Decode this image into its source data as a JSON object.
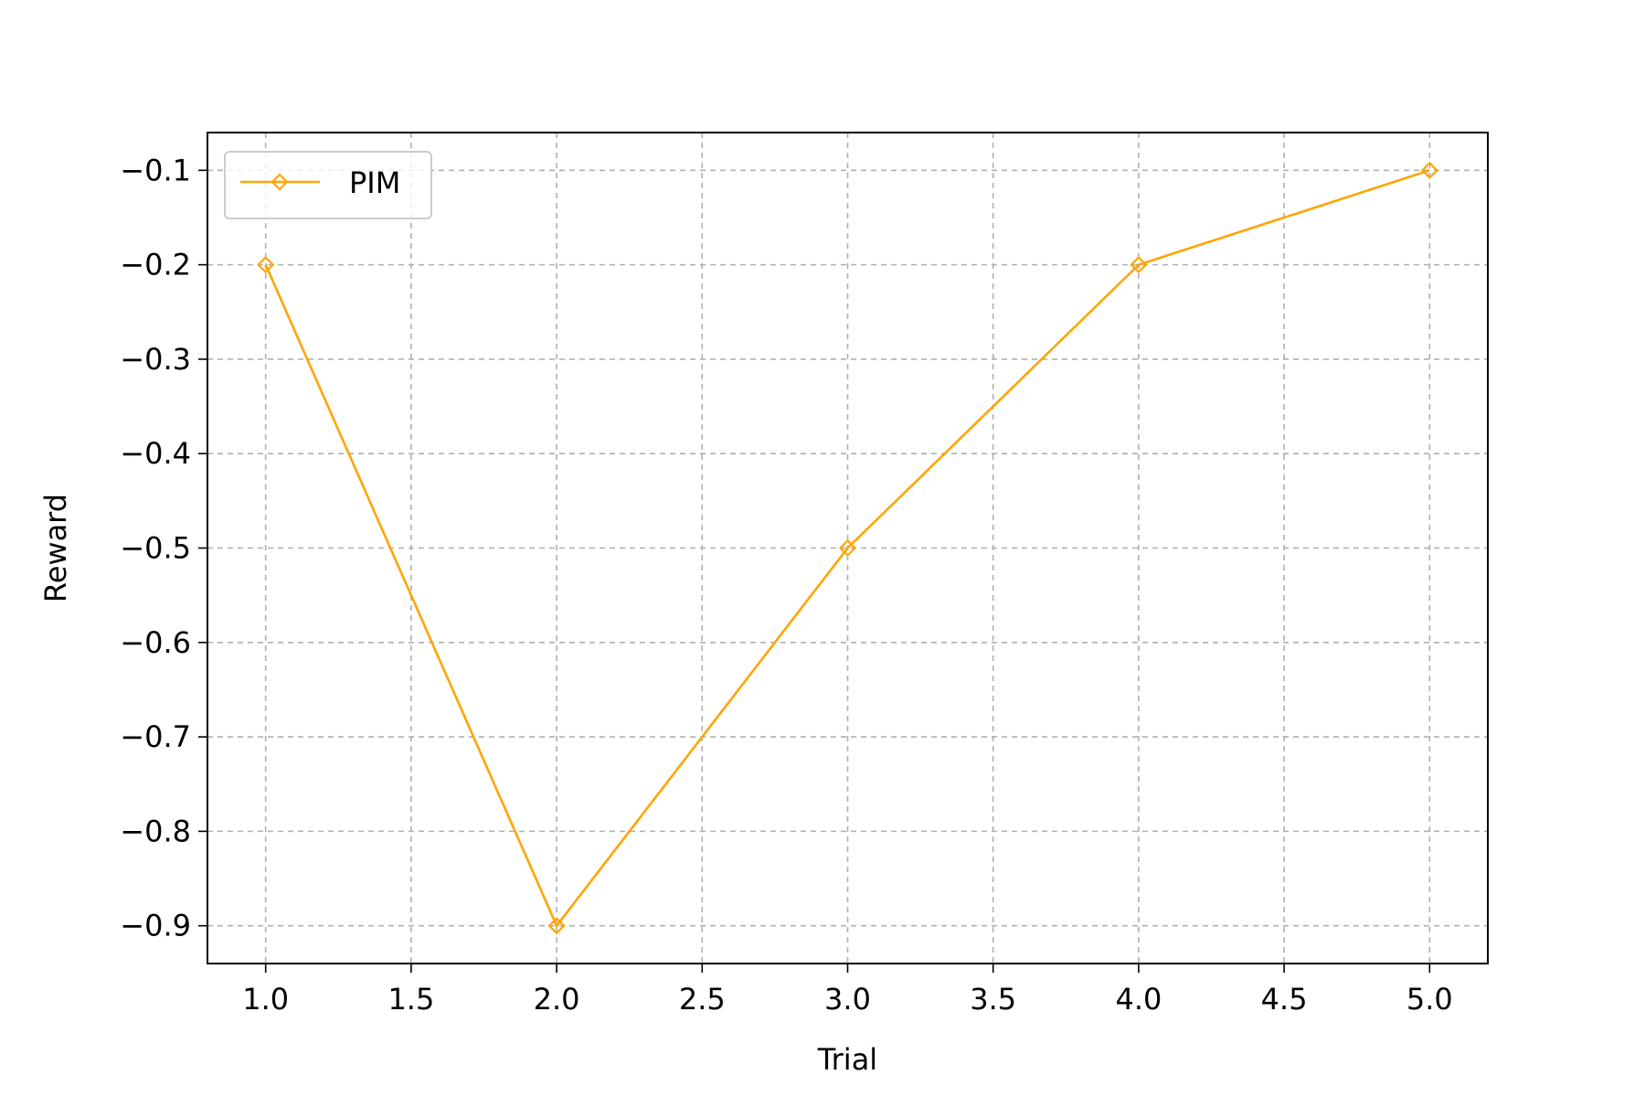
{
  "chart_data": {
    "type": "line",
    "title": "",
    "xlabel": "Trial",
    "ylabel": "Reward",
    "xlim": [
      0.8,
      5.2
    ],
    "ylim": [
      -0.94,
      -0.06
    ],
    "xticks": [
      1.0,
      1.5,
      2.0,
      2.5,
      3.0,
      3.5,
      4.0,
      4.5,
      5.0
    ],
    "xtick_labels": [
      "1.0",
      "1.5",
      "2.0",
      "2.5",
      "3.0",
      "3.5",
      "4.0",
      "4.5",
      "5.0"
    ],
    "yticks": [
      -0.1,
      -0.2,
      -0.3,
      -0.4,
      -0.5,
      -0.6,
      -0.7,
      -0.8,
      -0.9
    ],
    "ytick_labels": [
      "−0.1",
      "−0.2",
      "−0.3",
      "−0.4",
      "−0.5",
      "−0.6",
      "−0.7",
      "−0.8",
      "−0.9"
    ],
    "grid": true,
    "legend_position": "top-left",
    "series": [
      {
        "name": "PIM",
        "color": "#FFA500",
        "marker": "diamond",
        "x": [
          1,
          2,
          3,
          4,
          5
        ],
        "y": [
          -0.2,
          -0.9,
          -0.5,
          -0.2,
          -0.1
        ]
      }
    ]
  }
}
